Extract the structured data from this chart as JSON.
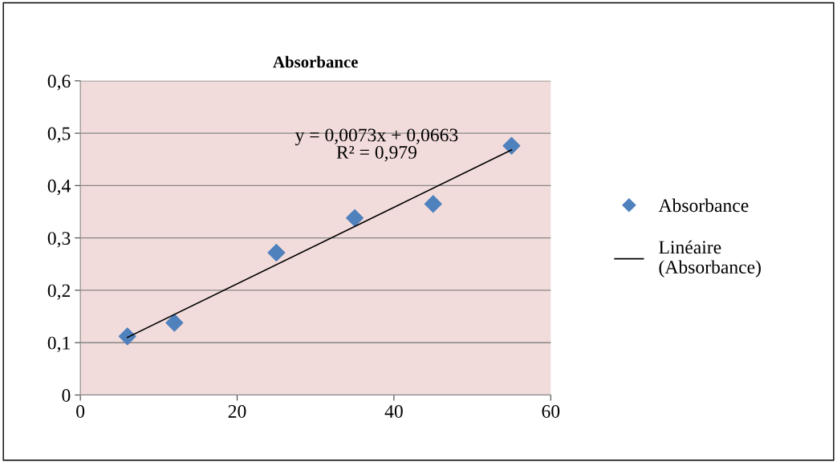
{
  "chart_data": {
    "type": "scatter",
    "title": "Absorbance",
    "xlim": [
      0,
      60
    ],
    "xticks": [
      0,
      20,
      40,
      60
    ],
    "ylim": [
      0,
      0.6
    ],
    "yticks": [
      {
        "value": 0,
        "label": "0"
      },
      {
        "value": 0.1,
        "label": "0,1"
      },
      {
        "value": 0.2,
        "label": "0,2"
      },
      {
        "value": 0.3,
        "label": "0,3"
      },
      {
        "value": 0.4,
        "label": "0,4"
      },
      {
        "value": 0.5,
        "label": "0,5"
      },
      {
        "value": 0.6,
        "label": "0,6"
      }
    ],
    "grid": "y",
    "legend": "right",
    "series": [
      {
        "name": "Absorbance",
        "marker": "diamond",
        "color": "#4f81bd",
        "x": [
          6,
          12,
          25,
          35,
          45,
          55
        ],
        "values": [
          0.112,
          0.138,
          0.272,
          0.338,
          0.365,
          0.476
        ]
      },
      {
        "name": "Linéaire (Absorbance)",
        "type": "line",
        "marker": "none",
        "color": "#000000",
        "x": [
          6,
          55
        ],
        "values": [
          0.11,
          0.468
        ]
      }
    ],
    "annotations": [
      "y = 0,0073x + 0,0663\nR² = 0,979"
    ]
  }
}
